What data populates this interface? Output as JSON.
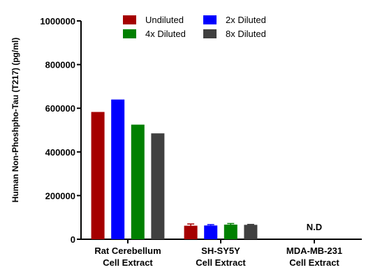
{
  "chart_data": {
    "type": "bar",
    "ylabel": "Human Non-Phoshpho-Tau (T217) (pg/ml)",
    "xlabel": "",
    "ylim": [
      0,
      1000000
    ],
    "yticks": [
      0,
      200000,
      400000,
      600000,
      800000,
      1000000
    ],
    "ytick_labels": [
      "0",
      "200000",
      "400000",
      "600000",
      "800000",
      "1000000"
    ],
    "categories": [
      [
        "Rat Cerebellum",
        "Cell Extract"
      ],
      [
        "SH-SY5Y",
        "Cell Extract"
      ],
      [
        "MDA-MB-231",
        "Cell Extract"
      ]
    ],
    "series": [
      {
        "name": "Undiluted",
        "color": "#a50000",
        "values": [
          583000,
          62000,
          null
        ],
        "errors": [
          0,
          8000,
          0
        ]
      },
      {
        "name": "2x Diluted",
        "color": "#0000ff",
        "values": [
          640000,
          63000,
          null
        ],
        "errors": [
          0,
          4000,
          0
        ]
      },
      {
        "name": "4x Diluted",
        "color": "#008000",
        "values": [
          525000,
          67000,
          null
        ],
        "errors": [
          0,
          5000,
          0
        ]
      },
      {
        "name": "8x Diluted",
        "color": "#404040",
        "values": [
          485000,
          66000,
          null
        ],
        "errors": [
          0,
          2000,
          0
        ]
      }
    ],
    "annotations": [
      {
        "category_index": 2,
        "text": "N.D"
      }
    ],
    "legend_position": "top",
    "grid": false
  }
}
